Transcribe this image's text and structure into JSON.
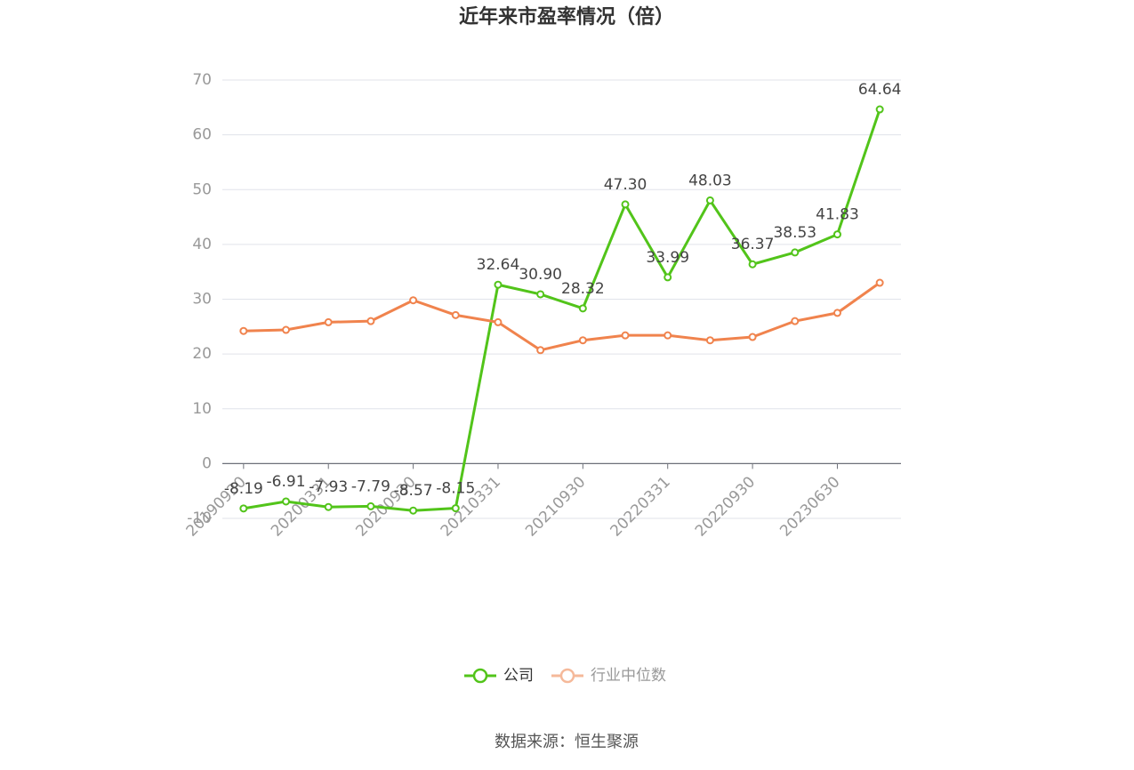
{
  "chart_data": {
    "type": "line",
    "title": "近年来市盈率情况（倍）",
    "source": "数据来源：恒生聚源",
    "categories": [
      "20190930",
      null,
      "20200331",
      null,
      "20200930",
      null,
      "20210331",
      null,
      "20210930",
      null,
      "20220331",
      null,
      "20220930",
      null,
      "20230630",
      null
    ],
    "series": [
      {
        "name": "公司",
        "color": "#52c41a",
        "values": [
          -8.19,
          -6.91,
          -7.93,
          -7.79,
          -8.57,
          -8.15,
          32.64,
          30.9,
          28.32,
          47.3,
          33.99,
          48.03,
          36.37,
          38.53,
          41.83,
          64.64
        ],
        "value_labels": [
          "-8.19",
          "-6.91",
          "-7.93",
          "-7.79",
          "-8.57",
          "-8.15",
          "32.64",
          "30.90",
          "28.32",
          "47.30",
          "33.99",
          "48.03",
          "36.37",
          "38.53",
          "41.83",
          "64.64"
        ]
      },
      {
        "name": "行业中位数",
        "color": "#f0834d",
        "values": [
          24.2,
          24.4,
          25.8,
          26.0,
          29.8,
          27.1,
          25.8,
          20.7,
          22.5,
          23.4,
          23.4,
          22.5,
          23.1,
          26.0,
          27.5,
          33.0
        ]
      }
    ],
    "ylim": [
      -10,
      70
    ],
    "yticks": [
      -10,
      0,
      10,
      20,
      30,
      40,
      50,
      60,
      70
    ],
    "grid": true,
    "legend": "bottom"
  }
}
